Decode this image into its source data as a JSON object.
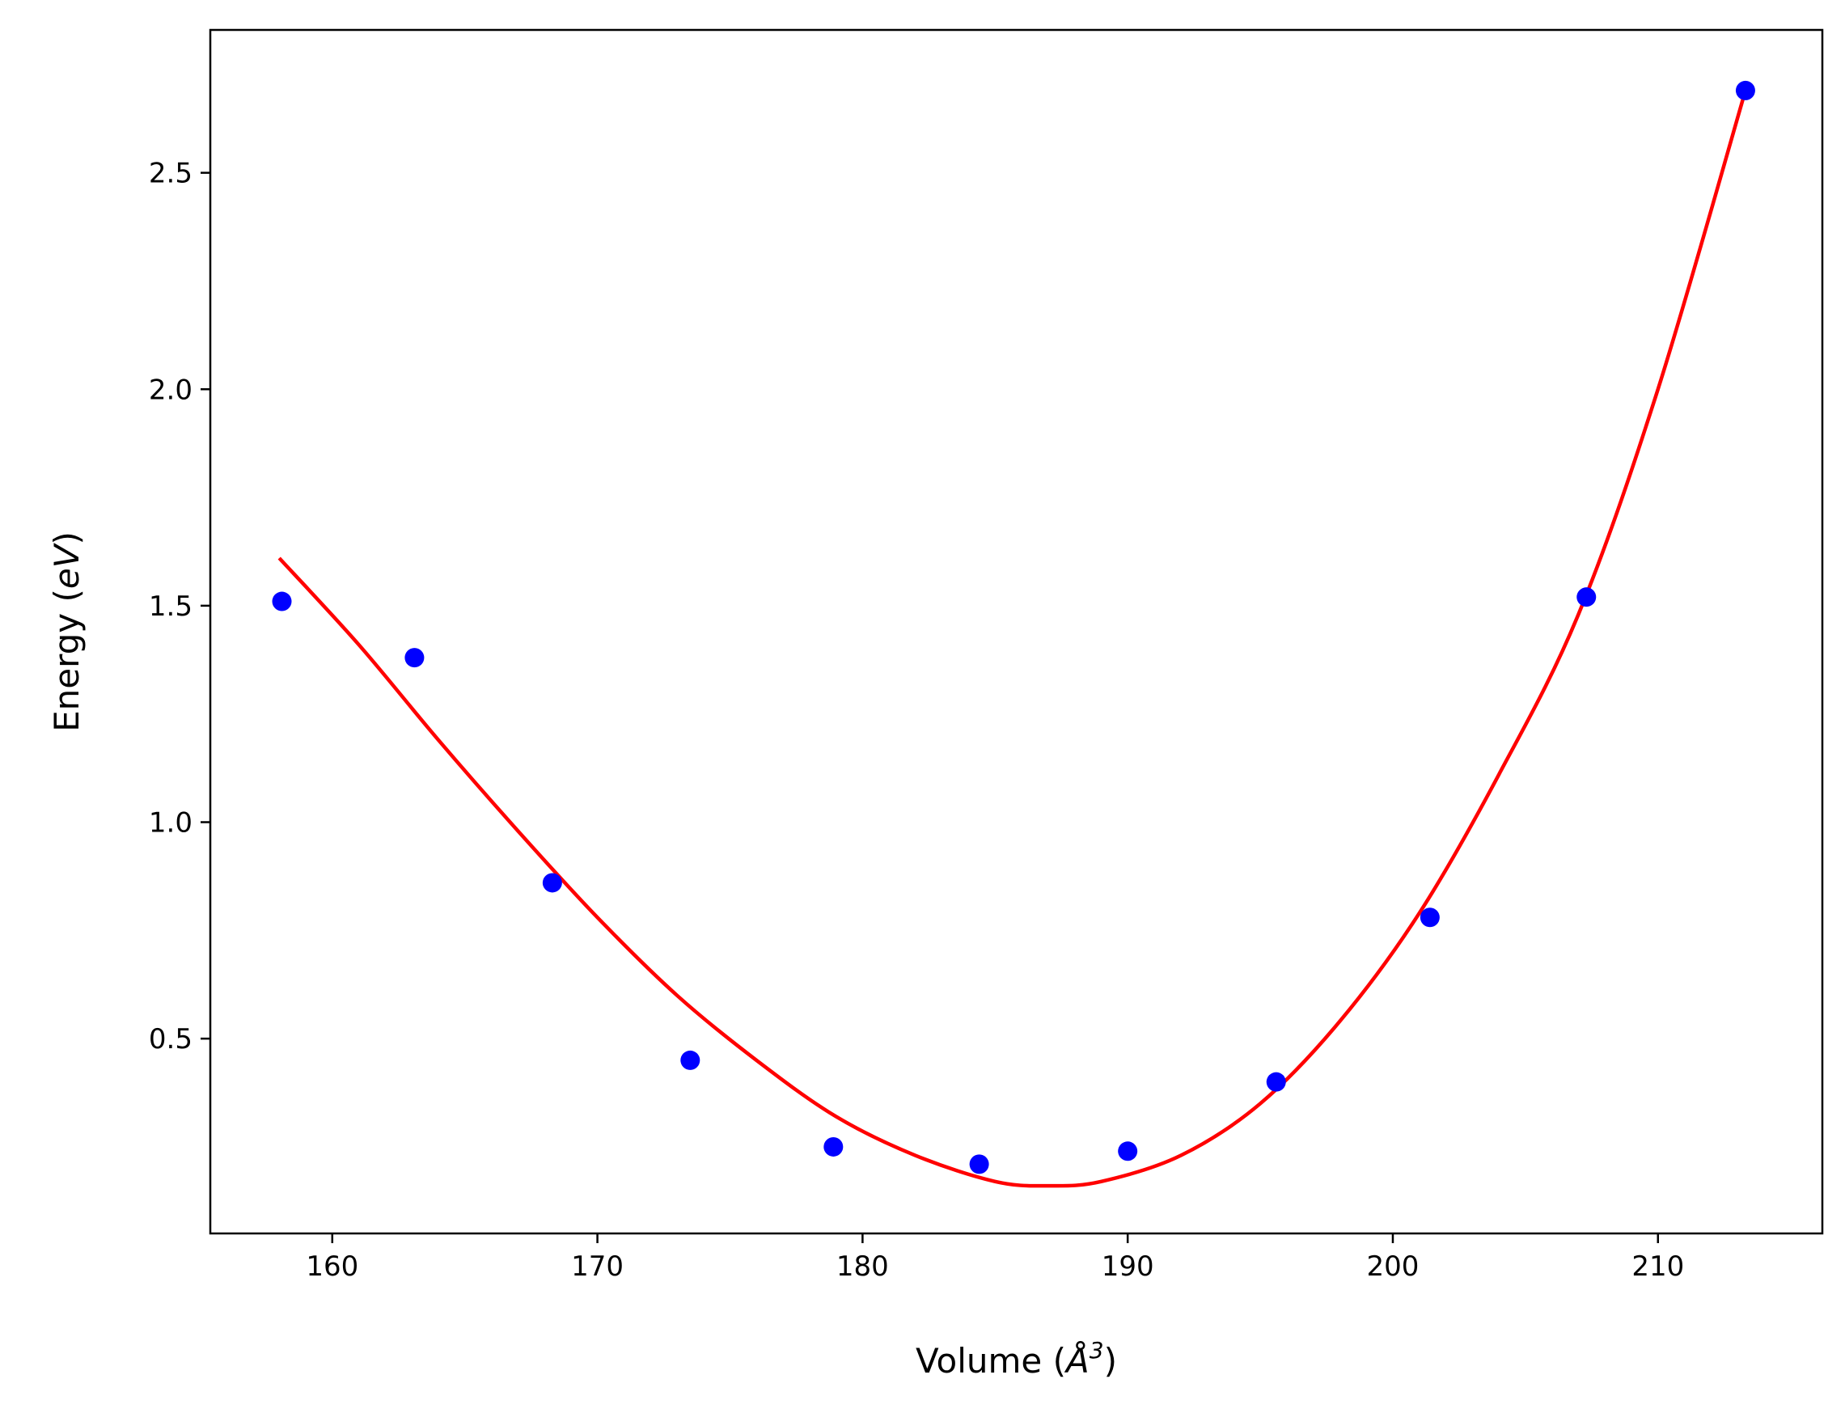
{
  "chart_data": {
    "type": "scatter",
    "title": "",
    "xlabel": "Volume (Å³)",
    "xlabel_parts": {
      "prefix": "Volume (",
      "unit": "Å",
      "exponent": "3",
      "suffix": ")"
    },
    "ylabel": "Energy (eV)",
    "ylabel_parts": {
      "prefix": "Energy (",
      "unit": "eV",
      "suffix": ")"
    },
    "xlim": [
      155.4,
      216.2
    ],
    "ylim": [
      0.05,
      2.83
    ],
    "xticks": [
      160,
      170,
      180,
      190,
      200,
      210
    ],
    "xtick_labels": [
      "160",
      "170",
      "180",
      "190",
      "200",
      "210"
    ],
    "yticks": [
      0.5,
      1.0,
      1.5,
      2.0,
      2.5
    ],
    "ytick_labels": [
      "0.5",
      "1.0",
      "1.5",
      "2.0",
      "2.5"
    ],
    "grid": false,
    "legend": "none",
    "series": [
      {
        "kind": "points",
        "color": "#0000ff",
        "x": [
          158.1,
          163.1,
          168.3,
          173.5,
          178.9,
          184.4,
          190.0,
          195.6,
          201.4,
          207.3,
          213.3
        ],
        "y": [
          1.51,
          1.38,
          0.86,
          0.45,
          0.25,
          0.21,
          0.24,
          0.4,
          0.78,
          1.52,
          2.69
        ]
      },
      {
        "kind": "line",
        "color": "#ff0000",
        "x": [
          158.0,
          161.0,
          164.0,
          167.0,
          170.0,
          173.0,
          176.0,
          179.0,
          182.0,
          185.0,
          187.0,
          189.0,
          192.0,
          195.0,
          198.0,
          201.0,
          204.0,
          207.0,
          210.0,
          213.3
        ],
        "y": [
          1.61,
          1.41,
          1.19,
          0.98,
          0.78,
          0.6,
          0.45,
          0.32,
          0.23,
          0.17,
          0.16,
          0.17,
          0.23,
          0.35,
          0.54,
          0.79,
          1.11,
          1.48,
          2.0,
          2.69
        ]
      }
    ]
  }
}
